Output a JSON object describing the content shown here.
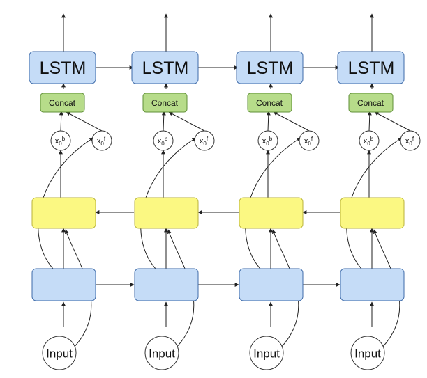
{
  "lstm_label": "LSTM",
  "concat_label": "Concat",
  "input_label": "Input",
  "x_backward": {
    "base": "x",
    "sub": "0",
    "sup": "b"
  },
  "x_forward": {
    "base": "x",
    "sub": "0",
    "sup": "f"
  },
  "columns": 4,
  "colors": {
    "lstm": "#c5dcf7",
    "concat": "#b7dc8a",
    "backward_layer": "#fbf882",
    "forward_layer": "#c5dcf7"
  }
}
